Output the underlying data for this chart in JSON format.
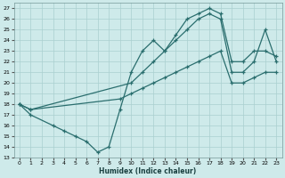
{
  "xlabel": "Humidex (Indice chaleur)",
  "bg_color": "#ceeaea",
  "grid_color": "#aacfcf",
  "line_color": "#2a6e6e",
  "xlim": [
    -0.5,
    23.5
  ],
  "ylim": [
    13,
    27.5
  ],
  "xticks": [
    0,
    1,
    2,
    3,
    4,
    5,
    6,
    7,
    8,
    9,
    10,
    11,
    12,
    13,
    14,
    15,
    16,
    17,
    18,
    19,
    20,
    21,
    22,
    23
  ],
  "yticks": [
    13,
    14,
    15,
    16,
    17,
    18,
    19,
    20,
    21,
    22,
    23,
    24,
    25,
    26,
    27
  ],
  "line1_x": [
    0,
    1,
    3,
    4,
    5,
    6,
    7,
    8,
    9,
    10,
    11,
    12,
    13,
    14,
    15,
    16,
    17,
    18,
    19,
    20,
    21,
    22,
    23
  ],
  "line1_y": [
    18,
    17,
    16,
    15.5,
    15,
    14.5,
    13.5,
    14,
    17.5,
    21,
    23,
    24,
    23,
    24.5,
    26,
    26.5,
    27,
    26.5,
    22,
    22,
    23,
    23,
    22.5
  ],
  "line2_x": [
    0,
    1,
    9,
    10,
    11,
    12,
    13,
    14,
    15,
    16,
    17,
    18,
    19,
    20,
    21,
    22,
    23
  ],
  "line2_y": [
    18,
    17.5,
    18.5,
    19,
    19.5,
    20,
    20.5,
    21,
    21.5,
    22,
    22.5,
    23,
    20,
    20,
    20.5,
    21,
    21
  ],
  "line3_x": [
    0,
    1,
    10,
    11,
    12,
    13,
    14,
    15,
    16,
    17,
    18,
    19,
    20,
    21,
    22,
    23
  ],
  "line3_y": [
    18,
    17.5,
    20,
    21,
    22,
    23,
    24,
    25,
    26,
    26.5,
    26,
    21,
    21,
    22,
    25,
    22
  ]
}
